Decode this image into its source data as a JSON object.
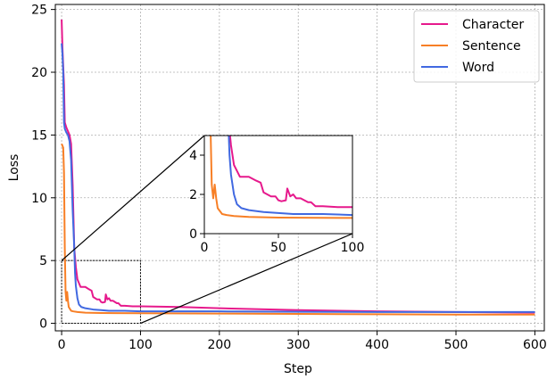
{
  "chart_data": {
    "type": "line",
    "title": "",
    "xlabel": "Step",
    "ylabel": "Loss",
    "xlim": [
      -8,
      612
    ],
    "ylim": [
      -0.6,
      25.4
    ],
    "xticks": [
      0,
      100,
      200,
      300,
      400,
      500,
      600
    ],
    "yticks": [
      0,
      5,
      10,
      15,
      20,
      25
    ],
    "grid": true,
    "legend": "top-right",
    "series": [
      {
        "name": "Character",
        "color": "#e6198c",
        "x": [
          0,
          1,
          3,
          4,
          6,
          8,
          10,
          12,
          14,
          16,
          18,
          20,
          22,
          24,
          26,
          28,
          30,
          35,
          38,
          40,
          45,
          48,
          50,
          52,
          55,
          56,
          58,
          60,
          62,
          65,
          70,
          72,
          75,
          80,
          90,
          100,
          150,
          200,
          300,
          400,
          500,
          600
        ],
        "y": [
          24.2,
          22.0,
          19.0,
          16.0,
          15.6,
          15.3,
          15.0,
          14.3,
          11.0,
          6.0,
          4.5,
          3.5,
          3.2,
          2.9,
          2.9,
          2.9,
          2.9,
          2.7,
          2.6,
          2.1,
          1.9,
          1.9,
          1.7,
          1.65,
          1.7,
          2.3,
          1.9,
          2.0,
          1.8,
          1.8,
          1.6,
          1.6,
          1.4,
          1.4,
          1.35,
          1.35,
          1.3,
          1.2,
          1.05,
          0.95,
          0.9,
          0.85
        ]
      },
      {
        "name": "Sentence",
        "color": "#f77f26",
        "x": [
          0,
          2,
          3,
          4,
          5,
          6,
          7,
          8,
          9,
          10,
          12,
          15,
          20,
          30,
          50,
          100,
          200,
          300,
          400,
          500,
          600
        ],
        "y": [
          14.3,
          14.0,
          12.0,
          6.0,
          2.5,
          1.8,
          2.5,
          1.8,
          1.3,
          1.2,
          1.0,
          0.95,
          0.9,
          0.85,
          0.82,
          0.8,
          0.78,
          0.75,
          0.72,
          0.7,
          0.7
        ]
      },
      {
        "name": "Word",
        "color": "#4169e1",
        "x": [
          0,
          1,
          2,
          3,
          4,
          6,
          8,
          10,
          12,
          14,
          16,
          17,
          18,
          20,
          22,
          25,
          30,
          40,
          50,
          60,
          80,
          100,
          200,
          300,
          400,
          500,
          600
        ],
        "y": [
          22.3,
          21.5,
          20.0,
          16.0,
          15.5,
          15.2,
          15.0,
          14.5,
          13.0,
          9.0,
          6.0,
          4.0,
          3.0,
          2.0,
          1.5,
          1.3,
          1.2,
          1.1,
          1.05,
          1.0,
          1.0,
          0.95,
          0.95,
          0.92,
          0.9,
          0.9,
          0.9
        ]
      }
    ],
    "inset": {
      "xlim": [
        0,
        100
      ],
      "ylim": [
        0,
        5
      ],
      "xticks": [
        0,
        50,
        100
      ],
      "yticks": [
        0,
        2,
        4
      ]
    }
  }
}
